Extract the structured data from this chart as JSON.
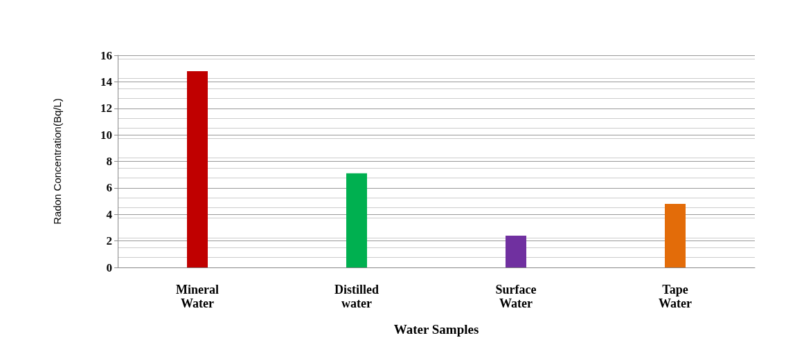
{
  "chart_data": {
    "type": "bar",
    "categories": [
      "Mineral\nWater",
      "Distilled\nwater",
      "Surface\nWater",
      "Tape\nWater"
    ],
    "values": [
      14.8,
      7.1,
      2.4,
      4.8
    ],
    "colors": [
      "#c00000",
      "#00b050",
      "#7030a0",
      "#e36c09"
    ],
    "xlabel": "Water Samples",
    "ylabel": "Radon Concentration(Bq/L)",
    "ylim": [
      0,
      16
    ],
    "yticks": [
      0,
      2,
      4,
      6,
      8,
      10,
      12,
      14,
      16
    ],
    "grid": true
  }
}
